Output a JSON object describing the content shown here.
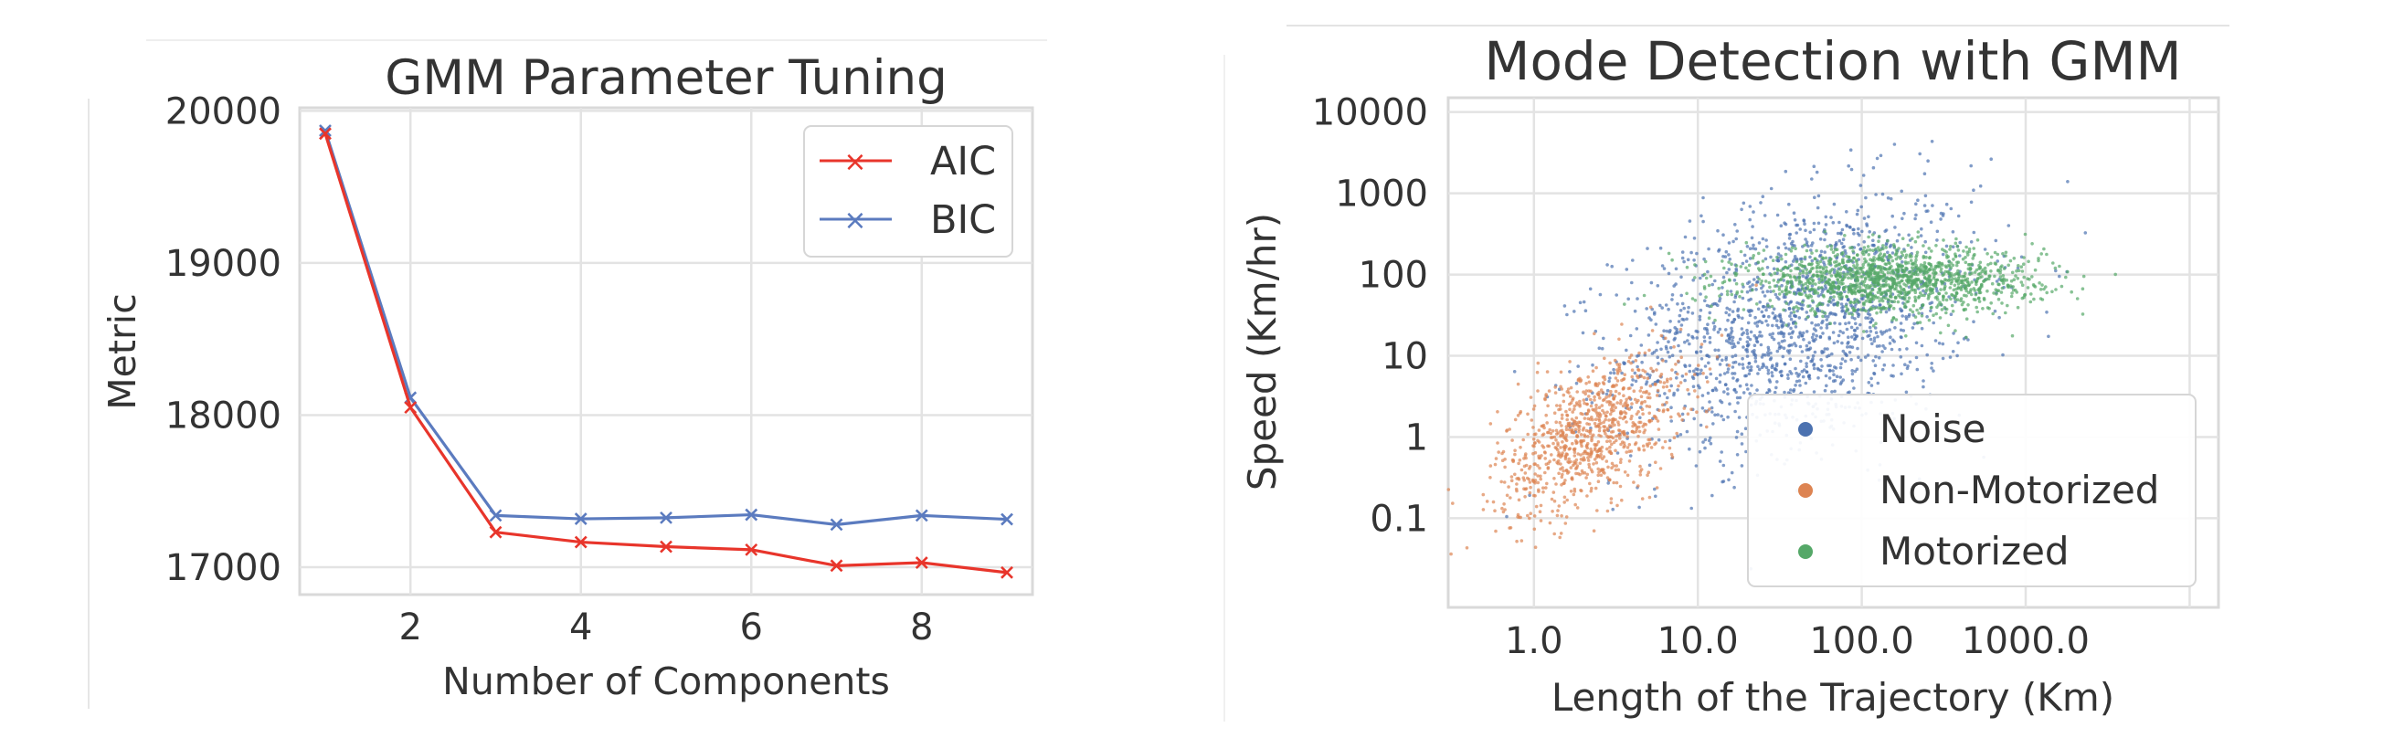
{
  "chart_data": [
    {
      "type": "line",
      "title": "GMM Parameter Tuning",
      "xlabel": "Number of Components",
      "ylabel": "Metric",
      "x": [
        1,
        2,
        3,
        4,
        5,
        6,
        7,
        8,
        9
      ],
      "xlim": [
        0.7,
        9.3
      ],
      "ylim": [
        16820,
        20020
      ],
      "xticks": [
        2,
        4,
        6,
        8
      ],
      "xtick_labels": [
        "2",
        "4",
        "6",
        "8"
      ],
      "yticks": [
        17000,
        18000,
        19000,
        20000
      ],
      "ytick_labels": [
        "17000",
        "18000",
        "19000",
        "20000"
      ],
      "grid": true,
      "legend_position": "top-right",
      "series": [
        {
          "name": "AIC",
          "color": "#e8352b",
          "marker": "x",
          "values": [
            19850,
            18050,
            17230,
            17165,
            17135,
            17115,
            17010,
            17030,
            16965
          ]
        },
        {
          "name": "BIC",
          "color": "#5b7bbf",
          "marker": "x",
          "values": [
            19870,
            18115,
            17340,
            17318,
            17325,
            17345,
            17280,
            17340,
            17315
          ]
        }
      ]
    },
    {
      "type": "scatter",
      "title": "Mode Detection with GMM",
      "xlabel": "Length of the Trajectory (Km)",
      "ylabel": "Speed (Km/hr)",
      "xscale": "log",
      "yscale": "log",
      "xlim": [
        0.3,
        15000
      ],
      "ylim": [
        0.008,
        15000
      ],
      "xticks": [
        1,
        10,
        100,
        1000
      ],
      "xtick_labels": [
        "1.0",
        "10.0",
        "100.0",
        "1000.0"
      ],
      "yticks": [
        0.1,
        1,
        10,
        100,
        1000,
        10000
      ],
      "ytick_labels": [
        "0.1",
        "1",
        "10",
        "100",
        "1000",
        "10000"
      ],
      "grid": true,
      "legend_position": "lower-right",
      "series": [
        {
          "name": "Noise",
          "color": "#4c72b0",
          "n_points": 1600,
          "cluster": {
            "x_center": 40,
            "y_center": 25,
            "x_spread_decades": 0.55,
            "y_spread_decades": 0.75
          }
        },
        {
          "name": "Non-Motorized",
          "color": "#dd8452",
          "n_points": 900,
          "cluster": {
            "x_center": 2.2,
            "y_center": 1.1,
            "x_spread_decades": 0.28,
            "y_spread_decades": 0.42
          }
        },
        {
          "name": "Motorized",
          "color": "#55a868",
          "n_points": 1400,
          "cluster": {
            "x_center": 150,
            "y_center": 85,
            "x_spread_decades": 0.45,
            "y_spread_decades": 0.2
          }
        }
      ]
    }
  ]
}
